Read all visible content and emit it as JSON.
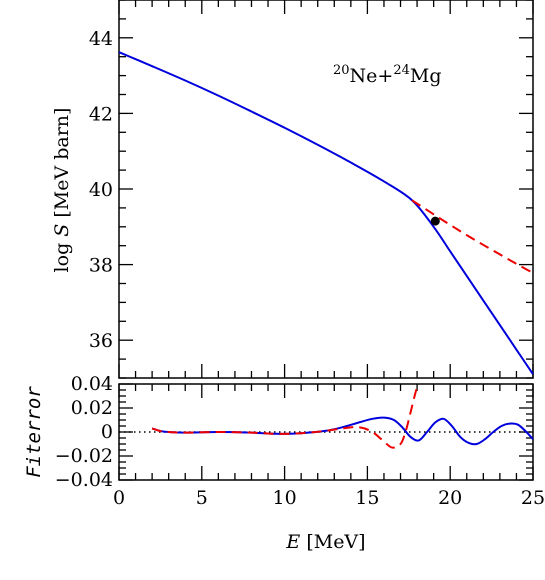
{
  "chart_data": [
    {
      "type": "line",
      "panel": "top",
      "xlabel": "",
      "ylabel": "log S [MeV barn]",
      "ylabel_parts": {
        "prefix": "log ",
        "var": "S",
        "unit": " [MeV barn]"
      },
      "xlim": [
        0,
        25
      ],
      "ylim": [
        35,
        45
      ],
      "y_ticks": [
        36,
        38,
        40,
        42,
        44
      ],
      "y_tick_labels": [
        "36",
        "38",
        "40",
        "42",
        "44"
      ],
      "annotation": {
        "mass1": "20",
        "elem1": "Ne+",
        "mass2": "24",
        "elem2": "Mg"
      },
      "series": [
        {
          "style": "solid",
          "color": "#0000dd",
          "x": [
            0.0,
            2.0,
            4.0,
            6.0,
            8.0,
            10.0,
            12.0,
            14.0,
            16.0,
            17.7,
            19.0,
            20.0,
            21.0,
            22.0,
            23.0,
            24.0,
            25.0
          ],
          "y": [
            43.62,
            43.25,
            42.87,
            42.47,
            42.05,
            41.62,
            41.17,
            40.7,
            40.2,
            39.7,
            39.0,
            38.35,
            37.7,
            37.05,
            36.4,
            35.75,
            35.1
          ]
        },
        {
          "style": "dashed",
          "color": "#ee0000",
          "x": [
            17.7,
            19.0,
            20.0,
            21.0,
            22.0,
            23.0,
            24.0,
            25.0
          ],
          "y": [
            39.7,
            39.33,
            39.05,
            38.78,
            38.52,
            38.27,
            38.02,
            37.78
          ]
        }
      ],
      "points": [
        {
          "x": 19.1,
          "y": 39.15
        }
      ]
    },
    {
      "type": "line",
      "panel": "bottom",
      "xlabel": "E [MeV]",
      "xlabel_parts": {
        "var": "E",
        "unit": " [MeV]"
      },
      "ylabel": "Fit error",
      "ylabel_parts": {
        "word1": "Fit",
        "word2": "error"
      },
      "xlim": [
        0,
        25
      ],
      "ylim": [
        -0.04,
        0.04
      ],
      "x_ticks": [
        0,
        5,
        10,
        15,
        20,
        25
      ],
      "x_tick_labels": [
        "0",
        "5",
        "10",
        "15",
        "20",
        "25"
      ],
      "y_ticks": [
        -0.04,
        -0.02,
        0,
        0.02,
        0.04
      ],
      "y_tick_labels": [
        "−0.04",
        "−0.02",
        "0",
        "0.02",
        "0.04"
      ],
      "zero_line": {
        "style": "dotted",
        "color": "#000000"
      },
      "series": [
        {
          "style": "solid",
          "color": "#0000dd",
          "x": [
            2.0,
            2.5,
            3.0,
            4.0,
            6.0,
            8.0,
            9.5,
            11.0,
            12.5,
            13.5,
            14.5,
            15.3,
            16.0,
            16.6,
            17.1,
            17.6,
            18.1,
            18.6,
            19.1,
            19.6,
            20.1,
            20.6,
            21.1,
            21.6,
            22.1,
            22.6,
            23.1,
            23.6,
            24.1,
            24.6,
            25.0
          ],
          "y": [
            0.003,
            0.0008,
            0.0,
            -0.0005,
            0.0,
            -0.0005,
            -0.0015,
            -0.001,
            0.001,
            0.004,
            0.008,
            0.011,
            0.012,
            0.01,
            0.004,
            -0.004,
            -0.007,
            0.0,
            0.008,
            0.011,
            0.005,
            -0.004,
            -0.009,
            -0.01,
            -0.006,
            0.0,
            0.005,
            0.007,
            0.006,
            0.0,
            -0.006
          ]
        },
        {
          "style": "dashed",
          "color": "#ee0000",
          "x": [
            2.0,
            2.5,
            3.0,
            4.0,
            6.0,
            8.0,
            9.5,
            11.0,
            12.5,
            13.5,
            14.5,
            15.3,
            16.0,
            16.5,
            17.0,
            17.3,
            17.6,
            17.85,
            18.05
          ],
          "y": [
            0.003,
            0.0008,
            0.0,
            -0.0005,
            0.0,
            -0.0005,
            -0.0015,
            -0.001,
            0.001,
            0.003,
            0.004,
            0.0,
            -0.008,
            -0.013,
            -0.01,
            0.0,
            0.016,
            0.03,
            0.04
          ]
        }
      ]
    }
  ]
}
